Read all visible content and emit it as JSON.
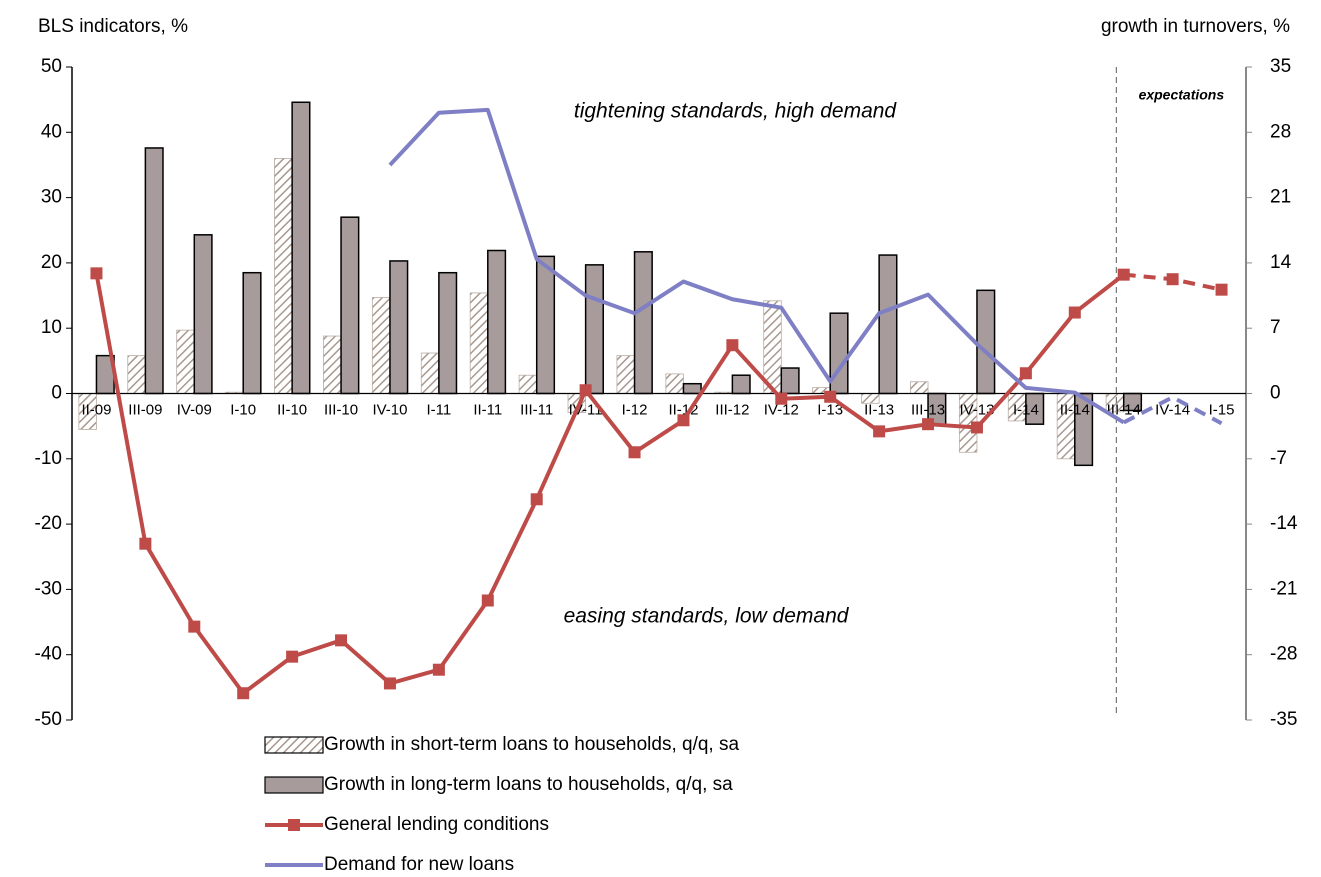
{
  "chart_data": {
    "type": "bar",
    "y_label": "BLS indicators, %",
    "y2_label": "growth in turnovers, %",
    "categories": [
      "II-09",
      "III-09",
      "IV-09",
      "I-10",
      "II-10",
      "III-10",
      "IV-10",
      "I-11",
      "II-11",
      "III-11",
      "IV-11",
      "I-12",
      "II-12",
      "III-12",
      "IV-12",
      "I-13",
      "II-13",
      "III-13",
      "IV-13",
      "I-14",
      "II-14",
      "III-14",
      "IV-14",
      "I-15"
    ],
    "ylim": [
      -50,
      50
    ],
    "yticks": [
      -50,
      -40,
      -30,
      -20,
      -10,
      0,
      10,
      20,
      30,
      40,
      50
    ],
    "y2lim": [
      -35,
      35
    ],
    "y2ticks": [
      -35,
      -28,
      -21,
      -14,
      -7,
      0,
      7,
      14,
      21,
      28,
      35
    ],
    "annotations": [
      "tightening standards, high demand",
      "easing standards, low demand",
      "expectations"
    ],
    "expectations_from": 21,
    "series": [
      {
        "name": "Growth in short-term loans to households, q/q, sa",
        "type": "bar",
        "pattern": "hatched",
        "color": "#a8988e",
        "values": [
          -5.5,
          5.8,
          9.7,
          0.2,
          36,
          8.8,
          14.7,
          6.2,
          15.4,
          2.8,
          -2.9,
          5.8,
          3.0,
          0.2,
          14.2,
          0.9,
          -1.5,
          1.8,
          -9,
          -4.2,
          -10,
          -2.8,
          null,
          null
        ]
      },
      {
        "name": "Growth in long-term loans to households, q/q, sa",
        "type": "bar",
        "color": "#a89b9c",
        "values": [
          5.8,
          37.6,
          24.3,
          18.5,
          44.6,
          27,
          20.3,
          18.5,
          21.9,
          21,
          19.7,
          21.7,
          1.5,
          2.8,
          3.9,
          12.3,
          21.2,
          -4.8,
          15.8,
          -4.7,
          -11,
          -2.6,
          null,
          null
        ]
      },
      {
        "name": "General lending conditions",
        "type": "line",
        "marker": "square",
        "color": "#be4b48",
        "values": [
          18.4,
          -23,
          -35.7,
          -45.9,
          -40.3,
          -37.8,
          -44.4,
          -42.3,
          -31.7,
          -16.2,
          0.5,
          -9,
          -4.1,
          7.4,
          -0.8,
          -0.5,
          -5.8,
          -4.7,
          -5.2,
          3.1,
          12.4,
          18.2,
          17.5,
          15.9
        ]
      },
      {
        "name": "Demand for new loans",
        "type": "line",
        "axis": "y2",
        "color": "#7f7fc6",
        "values": [
          null,
          null,
          null,
          null,
          null,
          null,
          24.5,
          30.1,
          30.4,
          14.4,
          10.5,
          8.6,
          12,
          10.1,
          9.2,
          1.3,
          8.6,
          10.6,
          5.3,
          0.6,
          0.1,
          -3.1,
          -0.4,
          -3.2
        ]
      }
    ]
  }
}
